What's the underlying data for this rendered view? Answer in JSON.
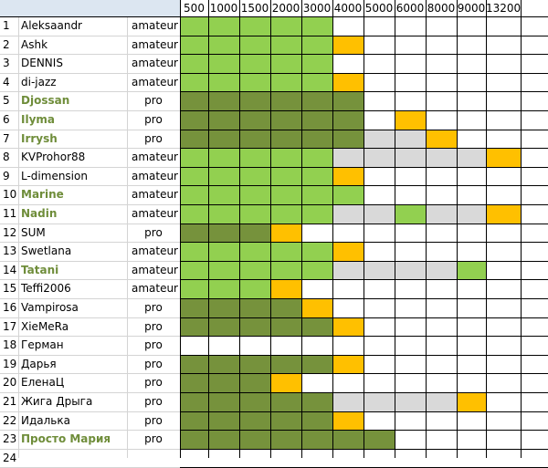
{
  "colors": {
    "header_bg": "#dce6f1",
    "light_green": "#92d050",
    "dark_green": "#76923c",
    "orange": "#ffc000",
    "gray": "#d9d9d9",
    "highlight_name": "#6f8d3a"
  },
  "columns": [
    "500",
    "1000",
    "1500",
    "2000",
    "3000",
    "4000",
    "5000",
    "6000",
    "8000",
    "9000",
    "13200"
  ],
  "rows": [
    {
      "num": "1",
      "name": "Aleksaandr",
      "level": "amateur",
      "highlight": false,
      "cells": [
        "L",
        "L",
        "L",
        "L",
        "L",
        "",
        "",
        "",
        "",
        "",
        ""
      ]
    },
    {
      "num": "2",
      "name": "Ashk",
      "level": "amateur",
      "highlight": false,
      "cells": [
        "L",
        "L",
        "L",
        "L",
        "L",
        "O",
        "",
        "",
        "",
        "",
        ""
      ]
    },
    {
      "num": "3",
      "name": "DENNIS",
      "level": "amateur",
      "highlight": false,
      "cells": [
        "L",
        "L",
        "L",
        "L",
        "L",
        "",
        "",
        "",
        "",
        "",
        ""
      ]
    },
    {
      "num": "4",
      "name": "di-jazz",
      "level": "amateur",
      "highlight": false,
      "cells": [
        "L",
        "L",
        "L",
        "L",
        "L",
        "O",
        "",
        "",
        "",
        "",
        ""
      ]
    },
    {
      "num": "5",
      "name": "Djossan",
      "level": "pro",
      "highlight": true,
      "cells": [
        "D",
        "D",
        "D",
        "D",
        "D",
        "D",
        "",
        "",
        "",
        "",
        ""
      ]
    },
    {
      "num": "6",
      "name": "Ilyma",
      "level": "pro",
      "highlight": true,
      "cells": [
        "D",
        "D",
        "D",
        "D",
        "D",
        "D",
        "",
        "O",
        "",
        "",
        ""
      ]
    },
    {
      "num": "7",
      "name": "Irrysh",
      "level": "pro",
      "highlight": true,
      "cells": [
        "D",
        "D",
        "D",
        "D",
        "D",
        "D",
        "G",
        "G",
        "O",
        "",
        ""
      ]
    },
    {
      "num": "8",
      "name": "KVProhor88",
      "level": "amateur",
      "highlight": false,
      "cells": [
        "L",
        "L",
        "L",
        "L",
        "L",
        "G",
        "G",
        "G",
        "G",
        "G",
        "O"
      ]
    },
    {
      "num": "9",
      "name": "L-dimension",
      "level": "amateur",
      "highlight": false,
      "cells": [
        "L",
        "L",
        "L",
        "L",
        "L",
        "O",
        "",
        "",
        "",
        "",
        ""
      ]
    },
    {
      "num": "10",
      "name": "Marine",
      "level": "amateur",
      "highlight": true,
      "cells": [
        "L",
        "L",
        "L",
        "L",
        "L",
        "L",
        "",
        "",
        "",
        "",
        ""
      ]
    },
    {
      "num": "11",
      "name": "Nadin",
      "level": "amateur",
      "highlight": true,
      "cells": [
        "L",
        "L",
        "L",
        "L",
        "L",
        "G",
        "G",
        "L",
        "G",
        "G",
        "O"
      ]
    },
    {
      "num": "12",
      "name": "SUM",
      "level": "pro",
      "highlight": false,
      "cells": [
        "D",
        "D",
        "D",
        "O",
        "",
        "",
        "",
        "",
        "",
        "",
        ""
      ]
    },
    {
      "num": "13",
      "name": "Swetlana",
      "level": "amateur",
      "highlight": false,
      "cells": [
        "L",
        "L",
        "L",
        "L",
        "L",
        "O",
        "",
        "",
        "",
        "",
        ""
      ]
    },
    {
      "num": "14",
      "name": "Tatani",
      "level": "amateur",
      "highlight": true,
      "cells": [
        "L",
        "L",
        "L",
        "L",
        "L",
        "G",
        "G",
        "G",
        "G",
        "L",
        ""
      ]
    },
    {
      "num": "15",
      "name": "Teffi2006",
      "level": "amateur",
      "highlight": false,
      "cells": [
        "L",
        "L",
        "L",
        "O",
        "",
        "",
        "",
        "",
        "",
        "",
        ""
      ]
    },
    {
      "num": "16",
      "name": "Vampirosa",
      "level": "pro",
      "highlight": false,
      "cells": [
        "D",
        "D",
        "D",
        "D",
        "O",
        "",
        "",
        "",
        "",
        "",
        ""
      ]
    },
    {
      "num": "17",
      "name": "XieMeRa",
      "level": "pro",
      "highlight": false,
      "cells": [
        "D",
        "D",
        "D",
        "D",
        "D",
        "O",
        "",
        "",
        "",
        "",
        ""
      ]
    },
    {
      "num": "18",
      "name": "Герман",
      "level": "pro",
      "highlight": false,
      "cells": [
        "",
        "",
        "",
        "",
        "",
        "",
        "",
        "",
        "",
        "",
        ""
      ]
    },
    {
      "num": "19",
      "name": "Дарья",
      "level": "pro",
      "highlight": false,
      "cells": [
        "D",
        "D",
        "D",
        "D",
        "D",
        "O",
        "",
        "",
        "",
        "",
        ""
      ]
    },
    {
      "num": "20",
      "name": "ЕленаЦ",
      "level": "pro",
      "highlight": false,
      "cells": [
        "D",
        "D",
        "D",
        "O",
        "",
        "",
        "",
        "",
        "",
        "",
        ""
      ]
    },
    {
      "num": "21",
      "name": "Жига Дрыга",
      "level": "pro",
      "highlight": false,
      "cells": [
        "D",
        "D",
        "D",
        "D",
        "D",
        "G",
        "G",
        "G",
        "G",
        "O",
        ""
      ]
    },
    {
      "num": "22",
      "name": "Идалька",
      "level": "pro",
      "highlight": false,
      "cells": [
        "D",
        "D",
        "D",
        "D",
        "D",
        "O",
        "",
        "",
        "",
        "",
        ""
      ]
    },
    {
      "num": "23",
      "name": "Просто Мария",
      "level": "pro",
      "highlight": true,
      "cells": [
        "D",
        "D",
        "D",
        "D",
        "D",
        "D",
        "D",
        "",
        "",
        "",
        ""
      ]
    },
    {
      "num": "24",
      "name": "",
      "level": "",
      "highlight": false,
      "cells": [
        "",
        "",
        "",
        "",
        "",
        "",
        "",
        "",
        "",
        "",
        ""
      ]
    }
  ]
}
